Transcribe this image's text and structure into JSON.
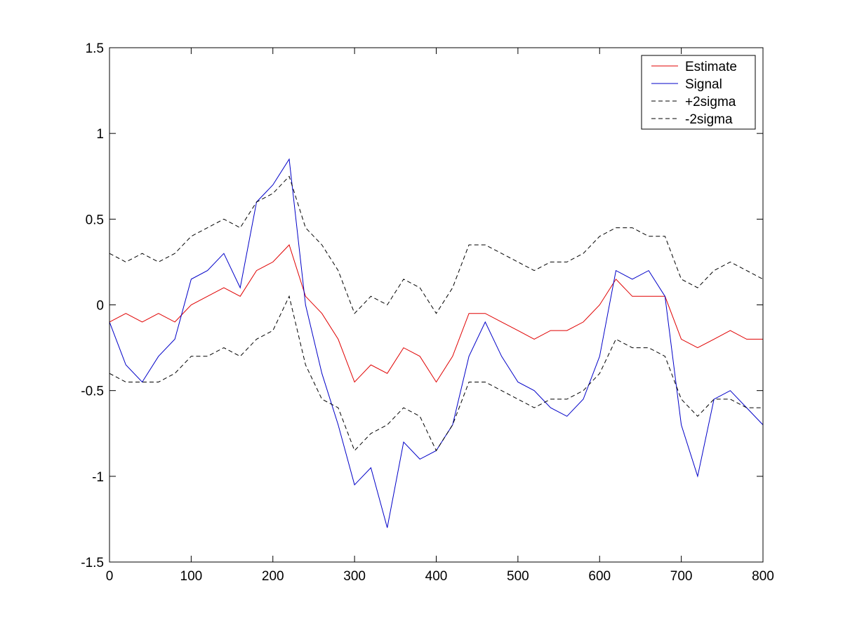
{
  "chart_data": {
    "type": "line",
    "title": "",
    "xlabel": "",
    "ylabel": "",
    "xlim": [
      0,
      800
    ],
    "ylim": [
      -1.5,
      1.5
    ],
    "xticks": [
      0,
      100,
      200,
      300,
      400,
      500,
      600,
      700,
      800
    ],
    "yticks": [
      -1.5,
      -1,
      -0.5,
      0,
      0.5,
      1,
      1.5
    ],
    "xtick_labels": [
      "0",
      "100",
      "200",
      "300",
      "400",
      "500",
      "600",
      "700",
      "800"
    ],
    "ytick_labels": [
      "-1.5",
      "-1",
      "-0.5",
      "0",
      "0.5",
      "1",
      "1.5"
    ],
    "grid": false,
    "legend_position": "top-right",
    "x": [
      0,
      20,
      40,
      60,
      80,
      100,
      120,
      140,
      160,
      180,
      200,
      220,
      240,
      260,
      280,
      300,
      320,
      340,
      360,
      380,
      400,
      420,
      440,
      460,
      480,
      500,
      520,
      540,
      560,
      580,
      600,
      620,
      640,
      660,
      680,
      700,
      720,
      740,
      760,
      780,
      800
    ],
    "series": [
      {
        "name": "Estimate",
        "color": "#e00000",
        "dash": "solid",
        "values": [
          -0.1,
          -0.05,
          -0.1,
          -0.05,
          -0.1,
          0.0,
          0.05,
          0.1,
          0.05,
          0.2,
          0.25,
          0.35,
          0.05,
          -0.05,
          -0.2,
          -0.45,
          -0.35,
          -0.4,
          -0.25,
          -0.3,
          -0.45,
          -0.3,
          -0.05,
          -0.05,
          -0.1,
          -0.15,
          -0.2,
          -0.15,
          -0.15,
          -0.1,
          0.0,
          0.15,
          0.05,
          0.05,
          0.05,
          -0.2,
          -0.25,
          -0.2,
          -0.15,
          -0.2,
          -0.2
        ]
      },
      {
        "name": "Signal",
        "color": "#0000c8",
        "dash": "solid",
        "values": [
          -0.1,
          -0.35,
          -0.45,
          -0.3,
          -0.2,
          0.15,
          0.2,
          0.3,
          0.1,
          0.6,
          0.7,
          0.85,
          0.0,
          -0.4,
          -0.7,
          -1.05,
          -0.95,
          -1.3,
          -0.8,
          -0.9,
          -0.85,
          -0.7,
          -0.3,
          -0.1,
          -0.3,
          -0.45,
          -0.5,
          -0.6,
          -0.65,
          -0.55,
          -0.3,
          0.2,
          0.15,
          0.2,
          0.05,
          -0.7,
          -1.0,
          -0.55,
          -0.5,
          -0.6,
          -0.7
        ]
      },
      {
        "name": "+2sigma",
        "color": "#000000",
        "dash": "dashed",
        "values": [
          0.3,
          0.25,
          0.3,
          0.25,
          0.3,
          0.4,
          0.45,
          0.5,
          0.45,
          0.6,
          0.65,
          0.75,
          0.45,
          0.35,
          0.2,
          -0.05,
          0.05,
          0.0,
          0.15,
          0.1,
          -0.05,
          0.1,
          0.35,
          0.35,
          0.3,
          0.25,
          0.2,
          0.25,
          0.25,
          0.3,
          0.4,
          0.45,
          0.45,
          0.4,
          0.4,
          0.15,
          0.1,
          0.2,
          0.25,
          0.2,
          0.15
        ]
      },
      {
        "name": "-2sigma",
        "color": "#000000",
        "dash": "dashed",
        "values": [
          -0.4,
          -0.45,
          -0.45,
          -0.45,
          -0.4,
          -0.3,
          -0.3,
          -0.25,
          -0.3,
          -0.2,
          -0.15,
          0.05,
          -0.35,
          -0.55,
          -0.6,
          -0.85,
          -0.75,
          -0.7,
          -0.6,
          -0.65,
          -0.85,
          -0.7,
          -0.45,
          -0.45,
          -0.5,
          -0.55,
          -0.6,
          -0.55,
          -0.55,
          -0.5,
          -0.4,
          -0.2,
          -0.25,
          -0.25,
          -0.3,
          -0.55,
          -0.65,
          -0.55,
          -0.55,
          -0.6,
          -0.6
        ]
      }
    ]
  }
}
